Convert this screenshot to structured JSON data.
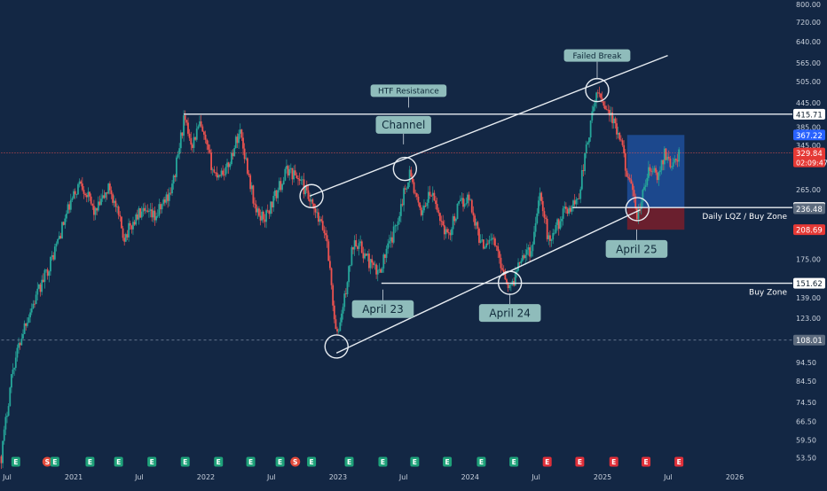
{
  "theme": {
    "background": "#132744",
    "up_color": "#26a69a",
    "down_color": "#ef5350",
    "line_color": "#e8edf2",
    "label_bg": "#8fbcbb",
    "label_text": "#0f2a3a",
    "axis_text": "#c8d0dc",
    "current_price_color": "#ef5350",
    "long_target_fill": "#1e4f9a",
    "long_stop_fill": "#7a1f2a"
  },
  "chart_data": {
    "type": "candlestick",
    "title": "",
    "y_scale": "log",
    "ylim": [
      52,
      800
    ],
    "x_range": [
      "2020-06-15",
      "2026-06-20"
    ],
    "y_ticks": [
      53.5,
      59.5,
      66.5,
      74.5,
      84.5,
      94.5,
      108.01,
      123.0,
      139.0,
      151.62,
      175.0,
      208.69,
      236.48,
      238.18,
      265.0,
      329.84,
      345.0,
      367.22,
      385.0,
      415.71,
      445.0,
      505.0,
      565.0,
      640.0,
      720.0,
      800.0
    ],
    "x_ticks": [
      {
        "date": "2020-07-01",
        "label": "Jul"
      },
      {
        "date": "2021-01-01",
        "label": "2021"
      },
      {
        "date": "2021-07-01",
        "label": "Jul"
      },
      {
        "date": "2022-01-01",
        "label": "2022"
      },
      {
        "date": "2022-07-01",
        "label": "Jul"
      },
      {
        "date": "2023-01-01",
        "label": "2023"
      },
      {
        "date": "2023-07-01",
        "label": "Jul"
      },
      {
        "date": "2024-01-01",
        "label": "2024"
      },
      {
        "date": "2024-07-01",
        "label": "Jul"
      },
      {
        "date": "2025-01-01",
        "label": "2025"
      },
      {
        "date": "2025-07-01",
        "label": "Jul"
      },
      {
        "date": "2026-01-01",
        "label": "2026"
      }
    ],
    "price_path": [
      [
        "2020-06-15",
        54
      ],
      [
        "2020-07-15",
        90
      ],
      [
        "2020-08-20",
        120
      ],
      [
        "2020-09-20",
        140
      ],
      [
        "2020-11-01",
        175
      ],
      [
        "2020-12-20",
        240
      ],
      [
        "2021-01-20",
        280
      ],
      [
        "2021-03-01",
        230
      ],
      [
        "2021-04-10",
        270
      ],
      [
        "2021-05-20",
        200
      ],
      [
        "2021-07-01",
        230
      ],
      [
        "2021-08-15",
        225
      ],
      [
        "2021-10-01",
        270
      ],
      [
        "2021-11-01",
        400
      ],
      [
        "2021-11-25",
        350
      ],
      [
        "2021-12-15",
        390
      ],
      [
        "2022-01-25",
        290
      ],
      [
        "2022-03-01",
        300
      ],
      [
        "2022-04-05",
        380
      ],
      [
        "2022-05-20",
        230
      ],
      [
        "2022-06-15",
        225
      ],
      [
        "2022-08-15",
        300
      ],
      [
        "2022-09-20",
        280
      ],
      [
        "2022-10-20",
        240
      ],
      [
        "2022-12-01",
        200
      ],
      [
        "2022-12-28",
        108
      ],
      [
        "2023-01-20",
        140
      ],
      [
        "2023-02-15",
        200
      ],
      [
        "2023-03-15",
        180
      ],
      [
        "2023-04-20",
        160
      ],
      [
        "2023-06-01",
        200
      ],
      [
        "2023-07-18",
        295
      ],
      [
        "2023-08-15",
        230
      ],
      [
        "2023-09-15",
        260
      ],
      [
        "2023-10-30",
        200
      ],
      [
        "2023-12-01",
        240
      ],
      [
        "2023-12-28",
        255
      ],
      [
        "2024-02-01",
        190
      ],
      [
        "2024-03-01",
        200
      ],
      [
        "2024-04-22",
        145
      ],
      [
        "2024-05-20",
        180
      ],
      [
        "2024-06-20",
        185
      ],
      [
        "2024-07-10",
        265
      ],
      [
        "2024-08-05",
        195
      ],
      [
        "2024-09-15",
        230
      ],
      [
        "2024-10-25",
        250
      ],
      [
        "2024-11-15",
        330
      ],
      [
        "2024-12-17",
        480
      ],
      [
        "2025-01-20",
        420
      ],
      [
        "2025-02-20",
        350
      ],
      [
        "2025-04-07",
        225
      ],
      [
        "2025-05-10",
        300
      ],
      [
        "2025-06-05",
        285
      ],
      [
        "2025-06-20",
        330
      ],
      [
        "2025-07-15",
        305
      ],
      [
        "2025-08-01",
        330
      ]
    ],
    "last_price": 329.84,
    "countdown": "02:09:47",
    "axis_markers": [
      {
        "value": 415.71,
        "label": "415.71",
        "style": "white"
      },
      {
        "value": 367.22,
        "label": "367.22",
        "style": "blue"
      },
      {
        "value": 329.84,
        "label": "329.84",
        "style": "red"
      },
      {
        "value": 238.18,
        "label": "238.18",
        "style": "white"
      },
      {
        "value": 236.48,
        "label": "236.48",
        "style": "gray"
      },
      {
        "value": 208.69,
        "label": "208.69",
        "style": "red"
      },
      {
        "value": 151.62,
        "label": "151.62",
        "style": "white"
      },
      {
        "value": 108.01,
        "label": "108.01",
        "style": "gray"
      }
    ],
    "horizontal_lines": [
      {
        "value": 415.71,
        "from": "2021-11-01",
        "to": "2026-06-20",
        "style": "solid",
        "label": "HTF Resistance"
      },
      {
        "value": 238.18,
        "from": "2024-10-10",
        "to": "2026-06-20",
        "style": "solid",
        "label": "Daily LQZ / Buy Zone"
      },
      {
        "value": 151.62,
        "from": "2023-05-01",
        "to": "2026-06-20",
        "style": "solid",
        "label": "Buy Zone"
      },
      {
        "value": 108.01,
        "from": "2020-06-15",
        "to": "2026-06-20",
        "style": "dashed",
        "label": ""
      },
      {
        "value": 329.84,
        "from": "2020-06-15",
        "to": "2026-06-20",
        "style": "dotted",
        "label": ""
      }
    ],
    "channel": {
      "lower": [
        [
          "2022-12-28",
          100
        ],
        [
          "2025-04-15",
          235
        ]
      ],
      "upper": [
        [
          "2022-10-15",
          255
        ],
        [
          "2025-06-30",
          590
        ]
      ]
    },
    "circles": [
      [
        "2022-10-20",
        255
      ],
      [
        "2022-12-28",
        104
      ],
      [
        "2023-07-05",
        300
      ],
      [
        "2024-04-20",
        152
      ],
      [
        "2024-12-17",
        480
      ],
      [
        "2025-04-07",
        236
      ]
    ],
    "position_box": {
      "from": "2025-03-10",
      "to": "2025-08-15",
      "entry": 238.18,
      "target": 367.22,
      "stop": 208.69
    },
    "annotations": [
      {
        "text": "Failed Break",
        "at": [
          "2024-12-17",
          590
        ],
        "size": "small"
      },
      {
        "text": "HTF Resistance",
        "at": [
          "2023-07-15",
          478
        ],
        "size": "small"
      },
      {
        "text": "Channel",
        "at": [
          "2023-07-01",
          390
        ],
        "size": "large"
      },
      {
        "text": "April 23",
        "at": [
          "2023-05-05",
          130
        ],
        "size": "large"
      },
      {
        "text": "April 24",
        "at": [
          "2024-04-20",
          127
        ],
        "size": "large"
      },
      {
        "text": "April 25",
        "at": [
          "2025-04-05",
          186
        ],
        "size": "large"
      }
    ],
    "event_markers": [
      {
        "date": "2020-07-25",
        "kind": "E"
      },
      {
        "date": "2020-10-20",
        "kind": "S"
      },
      {
        "date": "2020-11-10",
        "kind": "E"
      },
      {
        "date": "2021-02-15",
        "kind": "E"
      },
      {
        "date": "2021-05-05",
        "kind": "E"
      },
      {
        "date": "2021-08-05",
        "kind": "E"
      },
      {
        "date": "2021-11-05",
        "kind": "E"
      },
      {
        "date": "2022-02-05",
        "kind": "E"
      },
      {
        "date": "2022-05-05",
        "kind": "E"
      },
      {
        "date": "2022-07-25",
        "kind": "E"
      },
      {
        "date": "2022-09-05",
        "kind": "S"
      },
      {
        "date": "2022-10-20",
        "kind": "E"
      },
      {
        "date": "2023-02-01",
        "kind": "E"
      },
      {
        "date": "2023-05-05",
        "kind": "E"
      },
      {
        "date": "2023-08-01",
        "kind": "E"
      },
      {
        "date": "2023-10-30",
        "kind": "E"
      },
      {
        "date": "2024-02-01",
        "kind": "E"
      },
      {
        "date": "2024-05-01",
        "kind": "E"
      },
      {
        "date": "2024-08-01",
        "kind": "E"
      },
      {
        "date": "2024-10-30",
        "kind": "E"
      },
      {
        "date": "2025-02-01",
        "kind": "E"
      },
      {
        "date": "2025-05-01",
        "kind": "E"
      },
      {
        "date": "2025-07-31",
        "kind": "E"
      }
    ]
  }
}
